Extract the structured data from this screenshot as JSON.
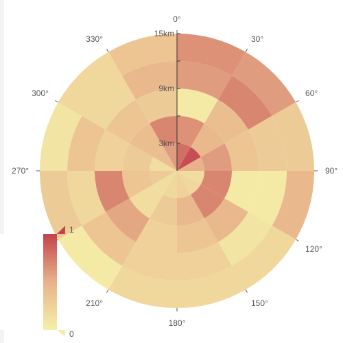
{
  "chart_data": {
    "type": "heatmap",
    "coordinate": "polar",
    "angle_axis": {
      "direction": "clockwise",
      "start": 0,
      "ticks": [
        "0°",
        "30°",
        "60°",
        "90°",
        "120°",
        "150°",
        "180°",
        "210°",
        "240°",
        "270°",
        "300°",
        "330°"
      ]
    },
    "radius_axis": {
      "ticks": [
        "3km",
        "9km",
        "15km"
      ],
      "rings": 5
    },
    "sectors": 12,
    "values_by_ring": [
      [
        0.8,
        0.95,
        0.5,
        0.15,
        0.2,
        0.25,
        0.2,
        0.15,
        0.3,
        0.15,
        0.4,
        0.6
      ],
      [
        0.65,
        0.45,
        0.6,
        0.7,
        0.7,
        0.45,
        0.3,
        0.15,
        0.35,
        0.3,
        0.4,
        0.7
      ],
      [
        0.05,
        0.4,
        0.35,
        0.05,
        0.45,
        0.35,
        0.25,
        0.55,
        0.7,
        0.25,
        0.35,
        0.3
      ],
      [
        0.6,
        0.7,
        0.3,
        0.05,
        0.1,
        0.25,
        0.25,
        0.35,
        0.2,
        0.35,
        0.2,
        0.45
      ],
      [
        0.65,
        0.6,
        0.3,
        0.45,
        0.2,
        0.2,
        0.2,
        0.05,
        0.3,
        0.1,
        0.2,
        0.35
      ]
    ],
    "visual_map": {
      "min": 0,
      "max": 1,
      "min_label": "0",
      "max_label": "1",
      "colors": [
        "#f5f0a8",
        "#c2434c"
      ]
    }
  }
}
